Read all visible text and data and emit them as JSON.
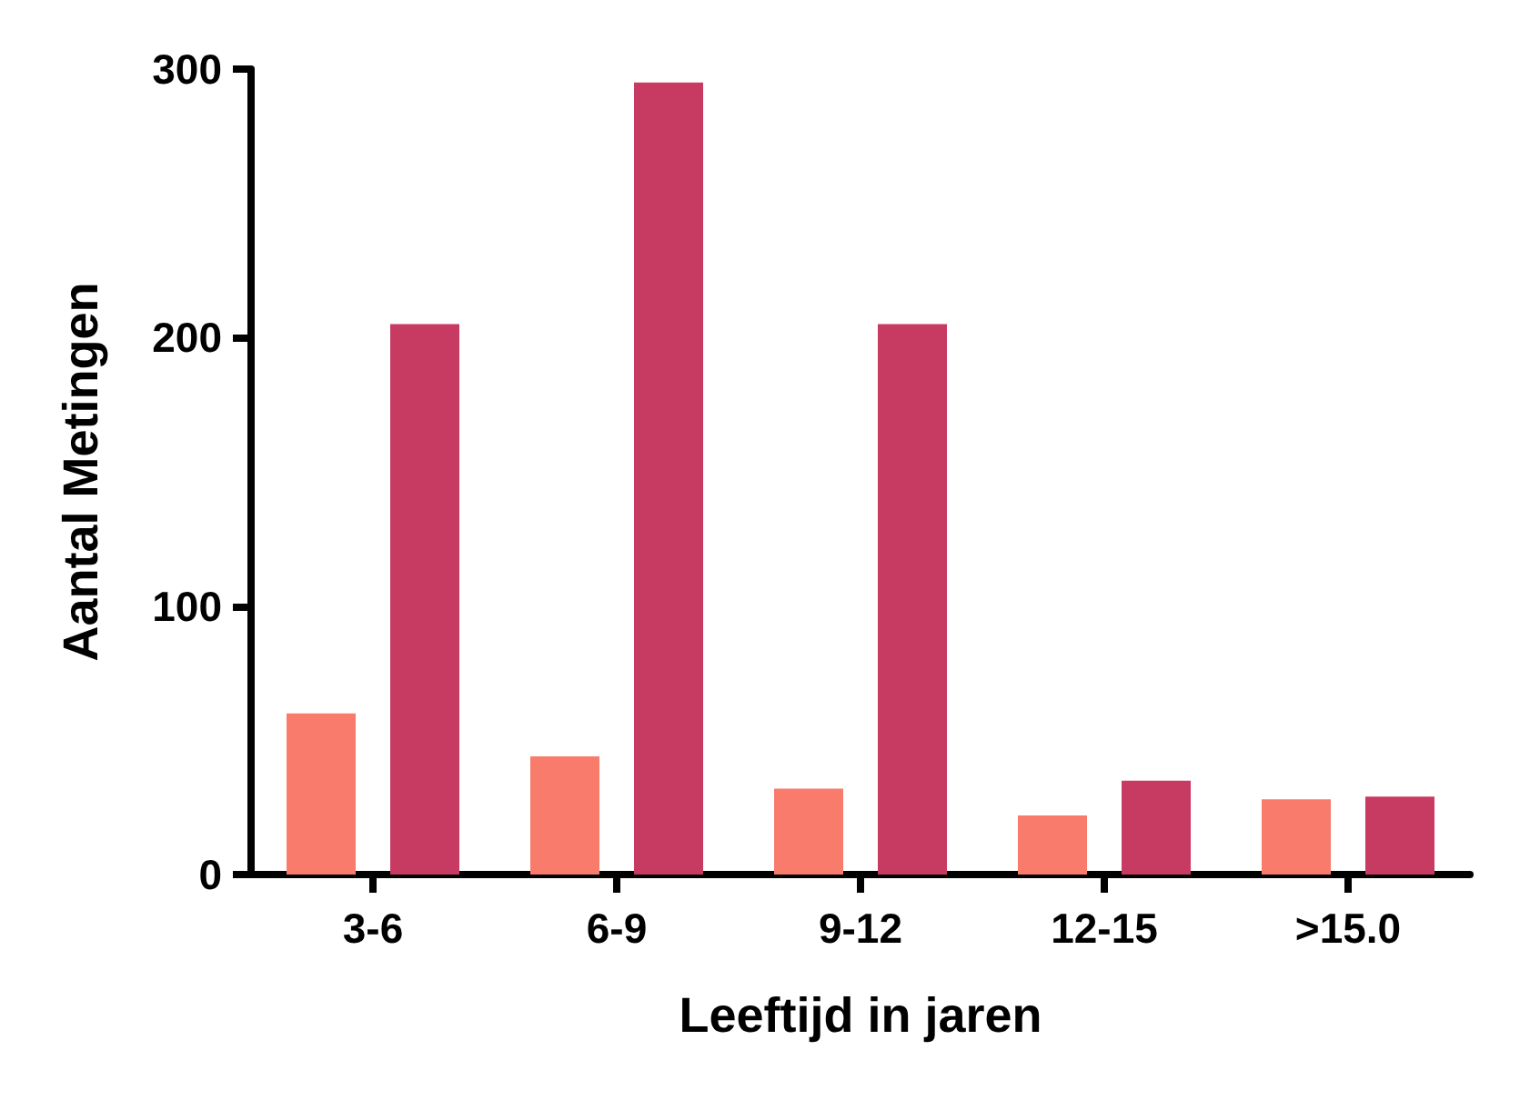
{
  "chart_data": {
    "type": "bar",
    "xlabel": "Leeftijd in jaren",
    "ylabel": "Aantal Metingen",
    "categories": [
      "3-6",
      "6-9",
      "9-12",
      "12-15",
      ">15.0"
    ],
    "series": [
      {
        "color": "#f87b6c",
        "values": [
          60,
          44,
          32,
          22,
          28
        ]
      },
      {
        "color": "#c73a62",
        "values": [
          205,
          295,
          205,
          35,
          29
        ]
      }
    ],
    "ylim": [
      0,
      300
    ],
    "yticks": [
      0,
      100,
      200,
      300
    ],
    "grid": false
  }
}
